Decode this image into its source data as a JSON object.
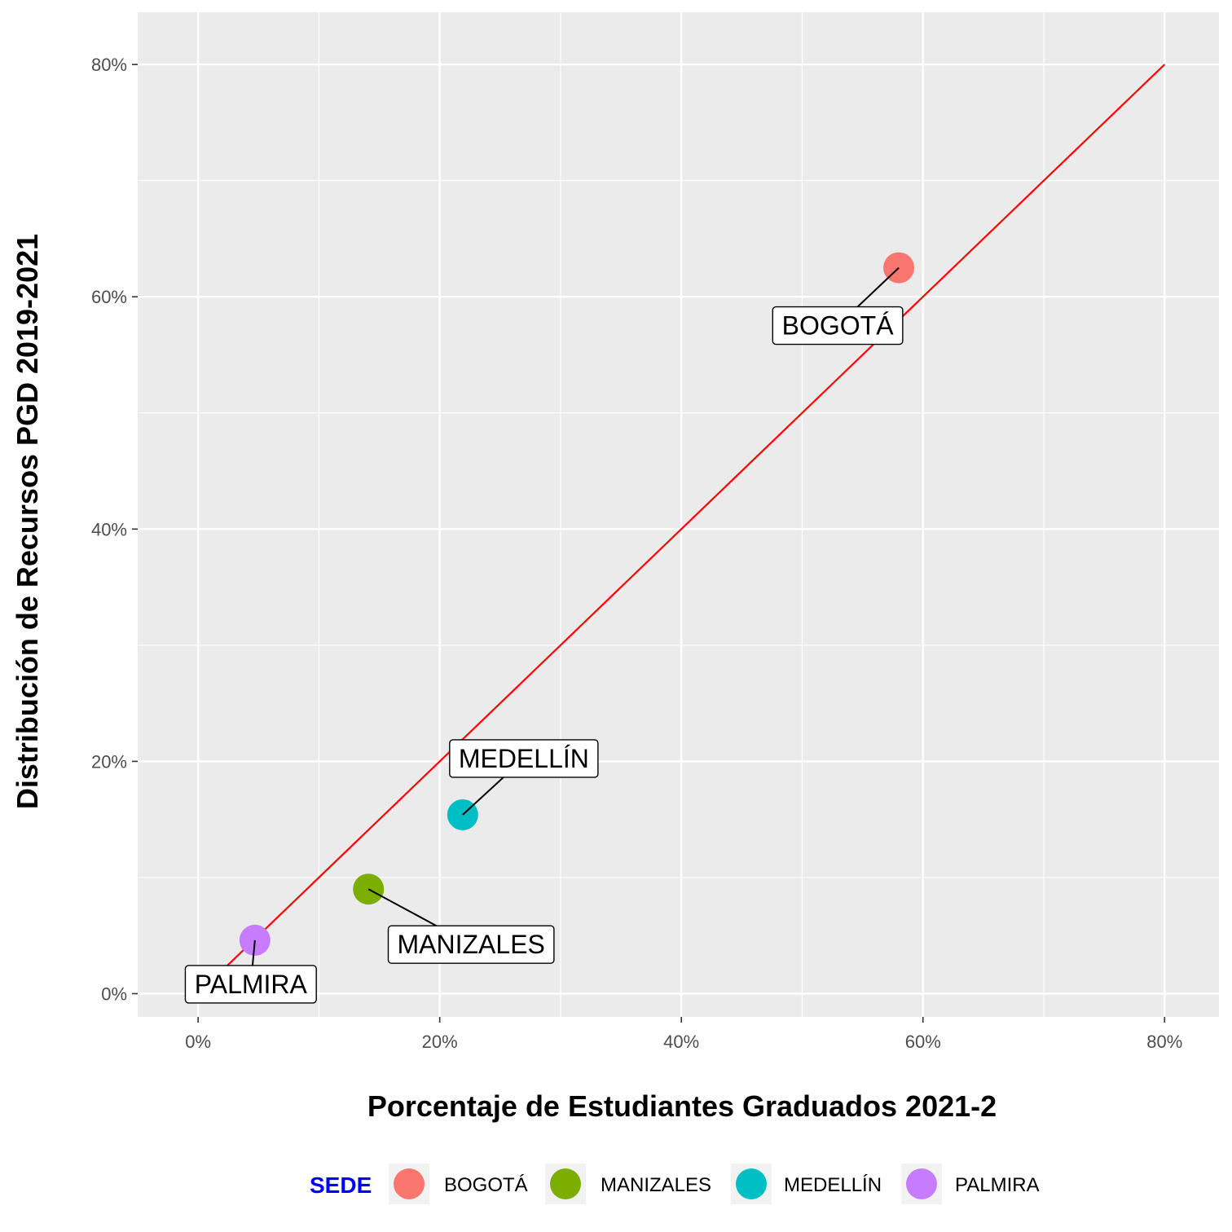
{
  "chart_data": {
    "type": "scatter",
    "xlabel": "Porcentaje de Estudiantes Graduados 2021-2",
    "ylabel": "Distribución de Recursos PGD 2019-2021",
    "xlim": [
      -0.05,
      0.845
    ],
    "ylim": [
      -0.02,
      0.845
    ],
    "x_ticks": [
      0,
      0.2,
      0.4,
      0.6,
      0.8
    ],
    "x_tick_labels": [
      "0%",
      "20%",
      "40%",
      "60%",
      "80%"
    ],
    "y_ticks": [
      0,
      0.2,
      0.4,
      0.6,
      0.8
    ],
    "y_tick_labels": [
      "0%",
      "20%",
      "40%",
      "60%",
      "80%"
    ],
    "grid": true,
    "panel_background": "#EBEBEB",
    "reference_line": {
      "description": "y = x",
      "from": [
        0.022,
        0.022
      ],
      "to": [
        0.8,
        0.8
      ],
      "color": "#FF0000"
    },
    "points": [
      {
        "name": "BOGOTÁ",
        "x": 0.58,
        "y": 0.625,
        "color": "#F8766D"
      },
      {
        "name": "MANIZALES",
        "x": 0.141,
        "y": 0.09,
        "color": "#7CAE00"
      },
      {
        "name": "MEDELLÍN",
        "x": 0.219,
        "y": 0.154,
        "color": "#00BFC4"
      },
      {
        "name": "PALMIRA",
        "x": 0.047,
        "y": 0.046,
        "color": "#C77CFF"
      }
    ],
    "legend": {
      "title": "SEDE",
      "title_color": "#0000FF",
      "position": "bottom",
      "entries": [
        "BOGOTÁ",
        "MANIZALES",
        "MEDELLÍN",
        "PALMIRA"
      ]
    }
  }
}
